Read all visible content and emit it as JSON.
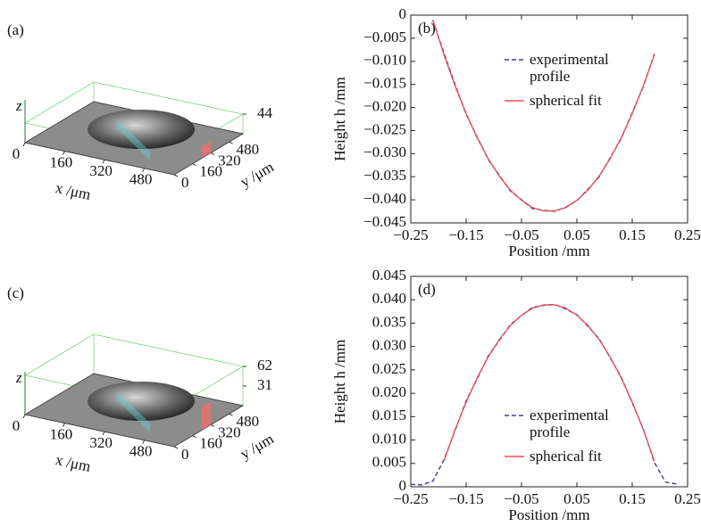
{
  "chart_data": [
    {
      "type": "surface3d",
      "label": "(a)",
      "xlabel": "x /μm",
      "ylabel": "y /μm",
      "zlabel": "z",
      "xlim": [
        0,
        600
      ],
      "ylim": [
        0,
        600
      ],
      "zlim": [
        0,
        44
      ],
      "xticks": [
        0,
        160,
        320,
        480
      ],
      "yticks": [
        0,
        160,
        320,
        480
      ],
      "zticks": [
        44
      ]
    },
    {
      "type": "line",
      "label": "(b)",
      "xlabel": "Position /mm",
      "ylabel": "Height h /mm",
      "x": [
        -0.21,
        -0.19,
        -0.17,
        -0.15,
        -0.13,
        -0.11,
        -0.09,
        -0.07,
        -0.05,
        -0.03,
        -0.01,
        0.01,
        0.03,
        0.05,
        0.07,
        0.09,
        0.11,
        0.13,
        0.15,
        0.17,
        0.19
      ],
      "series": [
        {
          "name": "experimental profile",
          "color": "#3b3ba6",
          "dashed": true,
          "values": [
            -0.0012,
            -0.0082,
            -0.015,
            -0.0215,
            -0.0264,
            -0.0313,
            -0.0347,
            -0.0381,
            -0.04,
            -0.0419,
            -0.0423,
            -0.0425,
            -0.0416,
            -0.0402,
            -0.0377,
            -0.0351,
            -0.0309,
            -0.0268,
            -0.0211,
            -0.0155,
            -0.0084
          ]
        },
        {
          "name": "spherical fit",
          "color": "#e8505a",
          "dashed": false,
          "values": [
            -0.001,
            -0.0086,
            -0.0153,
            -0.0213,
            -0.0266,
            -0.0311,
            -0.0349,
            -0.0379,
            -0.0401,
            -0.0417,
            -0.0424,
            -0.0424,
            -0.0417,
            -0.0401,
            -0.0379,
            -0.0349,
            -0.0311,
            -0.0266,
            -0.0213,
            -0.0153,
            -0.0086
          ]
        }
      ],
      "xlim": [
        -0.25,
        0.25
      ],
      "xticks": [
        {
          "value": -0.25,
          "label": "−0.25"
        },
        {
          "value": -0.15,
          "label": "−0.15"
        },
        {
          "value": -0.05,
          "label": "−0.05"
        },
        0.05,
        0.15,
        0.25
      ],
      "ylim": [
        -0.045,
        0
      ],
      "yticks": [
        0,
        {
          "value": -0.005,
          "label": "−0.005"
        },
        {
          "value": -0.01,
          "label": "−0.010"
        },
        {
          "value": -0.015,
          "label": "−0.015"
        },
        {
          "value": -0.02,
          "label": "−0.020"
        },
        {
          "value": -0.025,
          "label": "−0.025"
        },
        {
          "value": -0.03,
          "label": "−0.030"
        },
        {
          "value": -0.035,
          "label": "−0.035"
        },
        {
          "value": -0.04,
          "label": "−0.040"
        },
        {
          "value": -0.045,
          "label": "−0.045"
        }
      ],
      "legend": "upper right",
      "grid": false
    },
    {
      "type": "surface3d",
      "label": "(c)",
      "xlabel": "x /μm",
      "ylabel": "y /μm",
      "zlabel": "z",
      "xlim": [
        0,
        600
      ],
      "ylim": [
        0,
        600
      ],
      "zlim": [
        0,
        62
      ],
      "xticks": [
        0,
        160,
        320,
        480
      ],
      "yticks": [
        0,
        160,
        320,
        480
      ],
      "zticks": [
        31,
        62
      ]
    },
    {
      "type": "line",
      "label": "(d)",
      "xlabel": "Position /mm",
      "ylabel": "Height h /mm",
      "x": [
        -0.25,
        -0.23,
        -0.21,
        -0.19,
        -0.17,
        -0.15,
        -0.13,
        -0.11,
        -0.09,
        -0.07,
        -0.05,
        -0.03,
        -0.01,
        0.01,
        0.03,
        0.05,
        0.07,
        0.09,
        0.11,
        0.13,
        0.15,
        0.17,
        0.19,
        0.21,
        0.23
      ],
      "series": [
        {
          "name": "experimental profile",
          "color": "#3b3ba6",
          "dashed": true,
          "values": [
            0.0005,
            0.0004,
            0.0012,
            0.0058,
            0.012,
            0.0184,
            0.0231,
            0.028,
            0.0313,
            0.0347,
            0.0366,
            0.0384,
            0.0388,
            0.039,
            0.038,
            0.0368,
            0.0343,
            0.0317,
            0.0276,
            0.0235,
            0.0179,
            0.0124,
            0.0052,
            0.001,
            0.0006
          ]
        },
        {
          "name": "spherical fit",
          "color": "#e8505a",
          "dashed": false,
          "values": [
            null,
            null,
            null,
            0.0055,
            0.0122,
            0.0181,
            0.0233,
            0.0278,
            0.0315,
            0.0345,
            0.0367,
            0.0382,
            0.0389,
            0.0389,
            0.0382,
            0.0367,
            0.0345,
            0.0315,
            0.0278,
            0.0233,
            0.0181,
            0.0122,
            0.0055,
            null,
            null
          ]
        }
      ],
      "xlim": [
        -0.25,
        0.25
      ],
      "xticks": [
        {
          "value": -0.25,
          "label": "−0.25"
        },
        {
          "value": -0.15,
          "label": "−0.15"
        },
        {
          "value": -0.05,
          "label": "−0.05"
        },
        0.05,
        0.15,
        0.25
      ],
      "ylim": [
        0,
        0.045
      ],
      "yticks": [
        0,
        0.005,
        {
          "value": 0.01,
          "label": "0.010"
        },
        0.015,
        {
          "value": 0.02,
          "label": "0.020"
        },
        0.025,
        {
          "value": 0.03,
          "label": "0.030"
        },
        0.035,
        {
          "value": 0.04,
          "label": "0.040"
        },
        0.045
      ],
      "legend": "lower right",
      "grid": false
    }
  ]
}
